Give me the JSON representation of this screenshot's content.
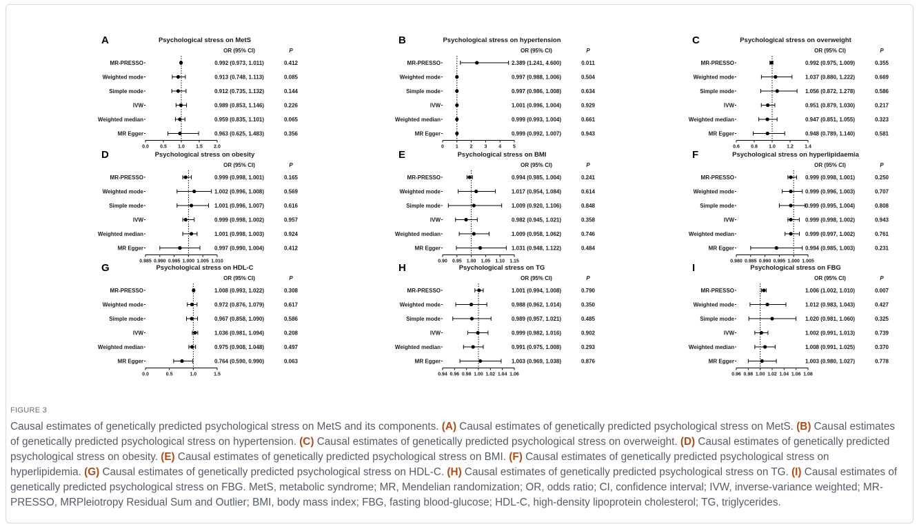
{
  "figure": {
    "label": "FIGURE 3",
    "col_or": "OR (95% CI)",
    "col_p": "P"
  },
  "caption": [
    {
      "t": "Causal estimates of genetically predicted psychological stress on MetS and its components. "
    },
    {
      "b": "(A)"
    },
    {
      "t": " Causal estimates of genetically predicted psychological stress on MetS. "
    },
    {
      "b": "(B)"
    },
    {
      "t": " Causal estimates of genetically predicted psychological stress on hypertension. "
    },
    {
      "b": "(C)"
    },
    {
      "t": " Causal estimates of genetically predicted psychological stress on overweight. "
    },
    {
      "b": "(D)"
    },
    {
      "t": " Causal estimates of genetically predicted psychological stress on obesity. "
    },
    {
      "b": "(E)"
    },
    {
      "t": " Causal estimates of genetically predicted psychological stress on BMI. "
    },
    {
      "b": "(F)"
    },
    {
      "t": " Causal estimates of genetically predicted psychological stress on hyperlipidemia. "
    },
    {
      "b": "(G)"
    },
    {
      "t": " Causal estimates of genetically predicted psychological stress on HDL-C. "
    },
    {
      "b": "(H)"
    },
    {
      "t": " Causal estimates of genetically predicted psychological stress on TG. "
    },
    {
      "b": "(I)"
    },
    {
      "t": " Causal estimates of genetically predicted psychological stress on FBG. MetS, metabolic syndrome; MR, Mendelian randomization; OR, odds ratio; CI, confidence interval; IVW, inverse-variance weighted; MR-PRESSO, MRPleiotropy Residual Sum and Outlier; BMI, body mass index; FBG, fasting blood-glucose; HDL-C, high-density lipoprotein cholesterol; TG, triglycerides."
    }
  ],
  "chart_data": [
    {
      "type": "scatter",
      "letter": "A",
      "title": "Psychological stress on MetS",
      "xlim": [
        0,
        2
      ],
      "ticks": [
        "0.0",
        "0.5",
        "1.0",
        "1.5",
        "2.0"
      ],
      "ref": 1,
      "rows": [
        {
          "method": "MR-PRESSO",
          "or": 0.992,
          "lo": 0.973,
          "hi": 1.011,
          "ci": "0.992 (0.973, 1.011)",
          "p": "0.412"
        },
        {
          "method": "Weighted mode",
          "or": 0.913,
          "lo": 0.748,
          "hi": 1.113,
          "ci": "0.913 (0.748, 1.113)",
          "p": "0.085"
        },
        {
          "method": "Simple mode",
          "or": 0.912,
          "lo": 0.735,
          "hi": 1.132,
          "ci": "0.912 (0.735, 1.132)",
          "p": "0.144"
        },
        {
          "method": "IVW",
          "or": 0.989,
          "lo": 0.853,
          "hi": 1.146,
          "ci": "0.989 (0.853, 1.146)",
          "p": "0.226"
        },
        {
          "method": "Weighted median",
          "or": 0.959,
          "lo": 0.835,
          "hi": 1.101,
          "ci": "0.959 (0.835, 1.101)",
          "p": "0.065"
        },
        {
          "method": "MR Egger",
          "or": 0.963,
          "lo": 0.625,
          "hi": 1.483,
          "ci": "0.963 (0.625, 1.483)",
          "p": "0.356"
        }
      ]
    },
    {
      "type": "scatter",
      "letter": "B",
      "title": "Psychological stress on hypertension",
      "xlim": [
        0,
        5
      ],
      "ticks": [
        "0",
        "1",
        "2",
        "3",
        "4",
        "5"
      ],
      "ref": 1,
      "rows": [
        {
          "method": "MR-PRESSO",
          "or": 2.389,
          "lo": 1.241,
          "hi": 4.6,
          "ci": "2.389 (1.241, 4.600)",
          "p": "0.011"
        },
        {
          "method": "Weighted mode",
          "or": 0.997,
          "lo": 0.988,
          "hi": 1.006,
          "ci": "0.997 (0.988, 1.006)",
          "p": "0.504"
        },
        {
          "method": "Simple mode",
          "or": 0.997,
          "lo": 0.986,
          "hi": 1.008,
          "ci": "0.997 (0.986, 1.008)",
          "p": "0.634"
        },
        {
          "method": "IVW",
          "or": 1.001,
          "lo": 0.996,
          "hi": 1.004,
          "ci": "1.001 (0.996, 1.004)",
          "p": "0.929"
        },
        {
          "method": "Weighted median",
          "or": 0.999,
          "lo": 0.993,
          "hi": 1.004,
          "ci": "0.999 (0.993, 1.004)",
          "p": "0.661"
        },
        {
          "method": "MR Egger",
          "or": 0.999,
          "lo": 0.992,
          "hi": 1.007,
          "ci": "0.999 (0.992, 1.007)",
          "p": "0.943"
        }
      ]
    },
    {
      "type": "scatter",
      "letter": "C",
      "title": "Psychological stress on overweight",
      "xlim": [
        0.6,
        1.4
      ],
      "ticks": [
        "0.6",
        "0.8",
        "1.0",
        "1.2",
        "1.4"
      ],
      "ref": 1,
      "rows": [
        {
          "method": "MR-PRESSO",
          "or": 0.992,
          "lo": 0.975,
          "hi": 1.009,
          "ci": "0.992 (0.975, 1.009)",
          "p": "0.355"
        },
        {
          "method": "Weighted mode",
          "or": 1.037,
          "lo": 0.88,
          "hi": 1.222,
          "ci": "1.037 (0.880, 1.222)",
          "p": "0.669"
        },
        {
          "method": "Simple mode",
          "or": 1.056,
          "lo": 0.872,
          "hi": 1.278,
          "ci": "1.056 (0.872, 1.278)",
          "p": "0.586"
        },
        {
          "method": "IVW",
          "or": 0.951,
          "lo": 0.879,
          "hi": 1.03,
          "ci": "0.951 (0.879, 1.030)",
          "p": "0.217"
        },
        {
          "method": "Weighted median",
          "or": 0.947,
          "lo": 0.851,
          "hi": 1.055,
          "ci": "0.947 (0.851, 1.055)",
          "p": "0.323"
        },
        {
          "method": "MR Egger",
          "or": 0.948,
          "lo": 0.789,
          "hi": 1.14,
          "ci": "0.948 (0.789, 1.140)",
          "p": "0.581"
        }
      ]
    },
    {
      "type": "scatter",
      "letter": "D",
      "title": "Psychological stress on obesity",
      "xlim": [
        0.985,
        1.01
      ],
      "ticks": [
        "0.985",
        "0.990",
        "0.995",
        "1.000",
        "1.005",
        "1.010"
      ],
      "ref": 1,
      "rows": [
        {
          "method": "MR-PRESSO",
          "or": 0.999,
          "lo": 0.998,
          "hi": 1.001,
          "ci": "0.999 (0.998, 1.001)",
          "p": "0.165"
        },
        {
          "method": "Weighted mode",
          "or": 1.002,
          "lo": 0.996,
          "hi": 1.008,
          "ci": "1.002 (0.996, 1.008)",
          "p": "0.569"
        },
        {
          "method": "Simple mode",
          "or": 1.001,
          "lo": 0.996,
          "hi": 1.007,
          "ci": "1.001 (0.996, 1.007)",
          "p": "0.616"
        },
        {
          "method": "IVW",
          "or": 0.999,
          "lo": 0.998,
          "hi": 1.002,
          "ci": "0.999 (0.998, 1.002)",
          "p": "0.957"
        },
        {
          "method": "Weighted median",
          "or": 1.001,
          "lo": 0.998,
          "hi": 1.003,
          "ci": "1.001 (0.998, 1.003)",
          "p": "0.924"
        },
        {
          "method": "MR Egger",
          "or": 0.997,
          "lo": 0.99,
          "hi": 1.004,
          "ci": "0.997 (0.990, 1.004)",
          "p": "0.412"
        }
      ]
    },
    {
      "type": "scatter",
      "letter": "E",
      "title": "Psychological stress on BMI",
      "xlim": [
        0.9,
        1.15
      ],
      "ticks": [
        "0.90",
        "0.95",
        "1.00",
        "1.05",
        "1.10",
        "1.15"
      ],
      "ref": 1,
      "rows": [
        {
          "method": "MR-PRESSO",
          "or": 0.994,
          "lo": 0.985,
          "hi": 1.004,
          "ci": "0.994 (0.985, 1.004)",
          "p": "0.241"
        },
        {
          "method": "Weighted mode",
          "or": 1.017,
          "lo": 0.954,
          "hi": 1.084,
          "ci": "1.017 (0.954, 1.084)",
          "p": "0.614"
        },
        {
          "method": "Simple mode",
          "or": 1.009,
          "lo": 0.92,
          "hi": 1.106,
          "ci": "1.009 (0.920, 1.106)",
          "p": "0.848"
        },
        {
          "method": "IVW",
          "or": 0.982,
          "lo": 0.945,
          "hi": 1.021,
          "ci": "0.982 (0.945, 1.021)",
          "p": "0.358"
        },
        {
          "method": "Weighted median",
          "or": 1.009,
          "lo": 0.958,
          "hi": 1.062,
          "ci": "1.009 (0.958, 1.062)",
          "p": "0.746"
        },
        {
          "method": "MR Egger",
          "or": 1.031,
          "lo": 0.948,
          "hi": 1.122,
          "ci": "1.031 (0.948, 1.122)",
          "p": "0.484"
        }
      ]
    },
    {
      "type": "scatter",
      "letter": "F",
      "title": "Psychological stress on hyperlipidaemia",
      "xlim": [
        0.98,
        1.005
      ],
      "ticks": [
        "0.980",
        "0.985",
        "0.990",
        "0.995",
        "1.000",
        "1.005"
      ],
      "ref": 1,
      "rows": [
        {
          "method": "MR-PRESSO",
          "or": 0.999,
          "lo": 0.998,
          "hi": 1.001,
          "ci": "0.999 (0.998, 1.001)",
          "p": "0.250"
        },
        {
          "method": "Weighted mode",
          "or": 0.999,
          "lo": 0.996,
          "hi": 1.003,
          "ci": "0.999 (0.996, 1.003)",
          "p": "0.707"
        },
        {
          "method": "Simple mode",
          "or": 0.999,
          "lo": 0.995,
          "hi": 1.004,
          "ci": "0.999 (0.995, 1.004)",
          "p": "0.808"
        },
        {
          "method": "IVW",
          "or": 0.999,
          "lo": 0.998,
          "hi": 1.002,
          "ci": "0.999 (0.998, 1.002)",
          "p": "0.943"
        },
        {
          "method": "Weighted median",
          "or": 0.999,
          "lo": 0.997,
          "hi": 1.002,
          "ci": "0.999 (0.997, 1.002)",
          "p": "0.761"
        },
        {
          "method": "MR Egger",
          "or": 0.994,
          "lo": 0.985,
          "hi": 1.003,
          "ci": "0.994 (0.985, 1.003)",
          "p": "0.231"
        }
      ]
    },
    {
      "type": "scatter",
      "letter": "G",
      "title": "Psychological stress on HDL-C",
      "xlim": [
        0,
        1.5
      ],
      "ticks": [
        "0.0",
        "0.5",
        "1.0",
        "1.5"
      ],
      "ref": 1,
      "rows": [
        {
          "method": "MR-PRESSO",
          "or": 1.008,
          "lo": 0.993,
          "hi": 1.022,
          "ci": "1.008 (0.993, 1.022)",
          "p": "0.308"
        },
        {
          "method": "Weighted mode",
          "or": 0.972,
          "lo": 0.876,
          "hi": 1.079,
          "ci": "0.972 (0.876, 1.079)",
          "p": "0.617"
        },
        {
          "method": "Simple mode",
          "or": 0.967,
          "lo": 0.858,
          "hi": 1.09,
          "ci": "0.967 (0.858, 1.090)",
          "p": "0.586"
        },
        {
          "method": "IVW",
          "or": 1.036,
          "lo": 0.981,
          "hi": 1.094,
          "ci": "1.036 (0.981, 1.094)",
          "p": "0.208"
        },
        {
          "method": "Weighted median",
          "or": 0.975,
          "lo": 0.908,
          "hi": 1.048,
          "ci": "0.975 (0.908, 1.048)",
          "p": "0.497"
        },
        {
          "method": "MR Egger",
          "or": 0.764,
          "lo": 0.59,
          "hi": 0.99,
          "ci": "0.764 (0.590, 0.990)",
          "p": "0.063"
        }
      ]
    },
    {
      "type": "scatter",
      "letter": "H",
      "title": "Psychological stress on TG",
      "xlim": [
        0.94,
        1.06
      ],
      "ticks": [
        "0.94",
        "0.96",
        "0.98",
        "1.00",
        "1.02",
        "1.04",
        "1.06"
      ],
      "ref": 1,
      "rows": [
        {
          "method": "MR-PRESSO",
          "or": 1.001,
          "lo": 0.994,
          "hi": 1.008,
          "ci": "1.001 (0.994, 1.008)",
          "p": "0.790"
        },
        {
          "method": "Weighted mode",
          "or": 0.988,
          "lo": 0.962,
          "hi": 1.014,
          "ci": "0.988 (0.962, 1.014)",
          "p": "0.350"
        },
        {
          "method": "Simple mode",
          "or": 0.989,
          "lo": 0.957,
          "hi": 1.021,
          "ci": "0.989 (0.957, 1.021)",
          "p": "0.485"
        },
        {
          "method": "IVW",
          "or": 0.999,
          "lo": 0.982,
          "hi": 1.016,
          "ci": "0.999 (0.982, 1.016)",
          "p": "0.902"
        },
        {
          "method": "Weighted median",
          "or": 0.991,
          "lo": 0.975,
          "hi": 1.008,
          "ci": "0.991 (0.975, 1.008)",
          "p": "0.293"
        },
        {
          "method": "MR Egger",
          "or": 1.003,
          "lo": 0.969,
          "hi": 1.038,
          "ci": "1.003 (0.969, 1.038)",
          "p": "0.876"
        }
      ]
    },
    {
      "type": "scatter",
      "letter": "I",
      "title": "Psychological stress on FBG",
      "xlim": [
        0.96,
        1.08
      ],
      "ticks": [
        "0.96",
        "0.98",
        "1.00",
        "1.02",
        "1.04",
        "1.06",
        "1.08"
      ],
      "ref": 1,
      "rows": [
        {
          "method": "MR-PRESSO",
          "or": 1.006,
          "lo": 1.002,
          "hi": 1.01,
          "ci": "1.006 (1.002, 1.010)",
          "p": "0.007"
        },
        {
          "method": "Weighted mode",
          "or": 1.012,
          "lo": 0.983,
          "hi": 1.043,
          "ci": "1.012 (0.983, 1.043)",
          "p": "0.427"
        },
        {
          "method": "Simple mode",
          "or": 1.02,
          "lo": 0.981,
          "hi": 1.06,
          "ci": "1.020 (0.981, 1.060)",
          "p": "0.325"
        },
        {
          "method": "IVW",
          "or": 1.002,
          "lo": 0.991,
          "hi": 1.013,
          "ci": "1.002 (0.991, 1.013)",
          "p": "0.739"
        },
        {
          "method": "Weighted median",
          "or": 1.008,
          "lo": 0.991,
          "hi": 1.025,
          "ci": "1.008 (0.991, 1.025)",
          "p": "0.370"
        },
        {
          "method": "MR Egger",
          "or": 1.003,
          "lo": 0.98,
          "hi": 1.027,
          "ci": "1.003 (0.980, 1.027)",
          "p": "0.778"
        }
      ]
    }
  ]
}
